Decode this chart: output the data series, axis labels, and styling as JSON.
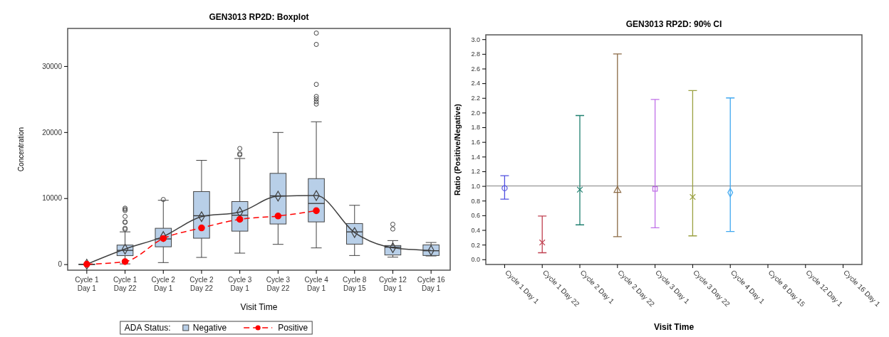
{
  "chart_data": [
    {
      "type": "box",
      "title": "GEN3013 RP2D: Boxplot",
      "xlabel": "Visit Time",
      "ylabel": "Concentration",
      "legend_title": "ADA Status:",
      "categories": [
        "Cycle 1 Day 1",
        "Cycle 1 Day 22",
        "Cycle 2 Day 1",
        "Cycle 2 Day 22",
        "Cycle 3 Day 1",
        "Cycle 3 Day 22",
        "Cycle 4 Day 1",
        "Cycle 8 Day 15",
        "Cycle 12 Day 1",
        "Cycle 16 Day 1"
      ],
      "ylim": [
        -900,
        35700
      ],
      "yticks": [
        0,
        10000,
        20000,
        30000
      ],
      "grid": false,
      "legend": "bottom",
      "series": [
        {
          "name": "Negative",
          "color": "#b8cfe8",
          "boxes": [
            {
              "low": 0,
              "q1": 0,
              "median": 0,
              "q3": 0,
              "high": 0
            },
            {
              "low": 50,
              "q1": 1300,
              "median": 2100,
              "q3": 2900,
              "high": 4900,
              "outliers": [
                5270,
                5440,
                6340,
                6410,
                7240,
                8130,
                8310,
                8490
              ]
            },
            {
              "low": 250,
              "q1": 2640,
              "median": 3830,
              "q3": 5440,
              "high": 9680,
              "outliers": [
                9800
              ]
            },
            {
              "low": 1030,
              "q1": 3940,
              "median": 7340,
              "q3": 11000,
              "high": 15730
            },
            {
              "low": 1680,
              "q1": 5010,
              "median": 7420,
              "q3": 9490,
              "high": 16010,
              "outliers": [
                16560,
                16730,
                17520
              ]
            },
            {
              "low": 3010,
              "q1": 6090,
              "median": 10350,
              "q3": 13760,
              "high": 19950
            },
            {
              "low": 2470,
              "q1": 6410,
              "median": 9200,
              "q3": 12960,
              "high": 21570,
              "outliers": [
                24250,
                24620,
                25050,
                25400,
                27230,
                33280,
                35000
              ]
            },
            {
              "low": 1320,
              "q1": 3040,
              "median": 4900,
              "q3": 6160,
              "high": 8920
            },
            {
              "low": 1070,
              "q1": 1400,
              "median": 2580,
              "q3": 2830,
              "high": 3580,
              "outliers": [
                5330,
                6050
              ]
            },
            {
              "low": 1250,
              "q1": 1320,
              "median": 2040,
              "q3": 2930,
              "high": 3290
            }
          ]
        },
        {
          "type": "line",
          "color": "#404040",
          "marker": "diamond",
          "line_style": "solid",
          "values": [
            0,
            2300,
            4200,
            7200,
            7900,
            10300,
            10400,
            4800,
            2500,
            2100
          ]
        },
        {
          "name": "Positive",
          "type": "line",
          "color": "#ff0000",
          "marker": "circle",
          "line_style": "dashed",
          "values": [
            0,
            400,
            3900,
            5500,
            6800,
            7300,
            8100,
            null,
            null,
            null
          ]
        }
      ]
    },
    {
      "type": "scatter",
      "title": "GEN3013 RP2D: 90% CI",
      "xlabel": "Visit Time",
      "ylabel": "Ratio (Positive/Negative)",
      "categories": [
        "Cycle 1 Day 1",
        "Cycle 1 Day 22",
        "Cycle 2 Day 1",
        "Cycle 2 Day 22",
        "Cycle 3 Day 1",
        "Cycle 3 Day 22",
        "Cycle 4 Day 1",
        "Cycle 8 Day 15",
        "Cycle 12 Day 1",
        "Cycle 16 Day 1"
      ],
      "ylim": [
        -0.07,
        3.06
      ],
      "yticks": [
        {
          "value": 0,
          "label": "0.0"
        },
        {
          "value": 0.2,
          "label": "0.2"
        },
        {
          "value": 0.4,
          "label": "0.4"
        },
        {
          "value": 0.6,
          "label": "0.6"
        },
        {
          "value": 0.8,
          "label": "0.8"
        },
        {
          "value": 1,
          "label": "1.0"
        },
        {
          "value": 1.2,
          "label": "1.2"
        },
        {
          "value": 1.4,
          "label": "1.4"
        },
        {
          "value": 1.6,
          "label": "1.6"
        },
        {
          "value": 1.8,
          "label": "1.8"
        },
        {
          "value": 2,
          "label": "2.0"
        },
        {
          "value": 2.2,
          "label": "2.2"
        },
        {
          "value": 2.4,
          "label": "2.4"
        },
        {
          "value": 2.6,
          "label": "2.6"
        },
        {
          "value": 2.8,
          "label": "2.8"
        },
        {
          "value": 3,
          "label": "3.0"
        }
      ],
      "grid": false,
      "legend": false,
      "ref_lines": [
        {
          "axis": "y",
          "value": 1,
          "color": "#808080"
        }
      ],
      "series": [
        {
          "color": "#5050e0",
          "marker": "circle",
          "values": [
            0.97,
            null,
            null,
            null,
            null,
            null,
            null,
            null,
            null,
            null
          ],
          "errors": [
            [
              0.82,
              1.14
            ],
            null,
            null,
            null,
            null,
            null,
            null,
            null,
            null,
            null
          ]
        },
        {
          "color": "#c04050",
          "marker": "cross",
          "values": [
            null,
            0.23,
            null,
            null,
            null,
            null,
            null,
            null,
            null,
            null
          ],
          "errors": [
            null,
            [
              0.09,
              0.59
            ],
            null,
            null,
            null,
            null,
            null,
            null,
            null,
            null
          ]
        },
        {
          "color": "#208070",
          "marker": "cross",
          "values": [
            null,
            null,
            0.95,
            null,
            null,
            null,
            null,
            null,
            null,
            null
          ],
          "errors": [
            null,
            null,
            [
              0.47,
              1.96
            ],
            null,
            null,
            null,
            null,
            null,
            null,
            null
          ]
        },
        {
          "color": "#8b6a45",
          "marker": "triangle",
          "values": [
            null,
            null,
            null,
            0.94,
            null,
            null,
            null,
            null,
            null,
            null
          ],
          "errors": [
            null,
            null,
            null,
            [
              0.31,
              2.8
            ],
            null,
            null,
            null,
            null,
            null,
            null
          ]
        },
        {
          "color": "#c070e8",
          "marker": "square",
          "values": [
            null,
            null,
            null,
            null,
            0.96,
            null,
            null,
            null,
            null,
            null
          ],
          "errors": [
            null,
            null,
            null,
            null,
            [
              0.43,
              2.18
            ],
            null,
            null,
            null,
            null,
            null
          ]
        },
        {
          "color": "#9aa040",
          "marker": "cross",
          "values": [
            null,
            null,
            null,
            null,
            null,
            0.85,
            null,
            null,
            null,
            null
          ],
          "errors": [
            null,
            null,
            null,
            null,
            null,
            [
              0.32,
              2.3
            ],
            null,
            null,
            null,
            null
          ]
        },
        {
          "color": "#40a8f0",
          "marker": "diamond",
          "values": [
            null,
            null,
            null,
            null,
            null,
            null,
            0.91,
            null,
            null,
            null
          ],
          "errors": [
            null,
            null,
            null,
            null,
            null,
            null,
            [
              0.38,
              2.2
            ],
            null,
            null,
            null
          ]
        }
      ]
    }
  ]
}
